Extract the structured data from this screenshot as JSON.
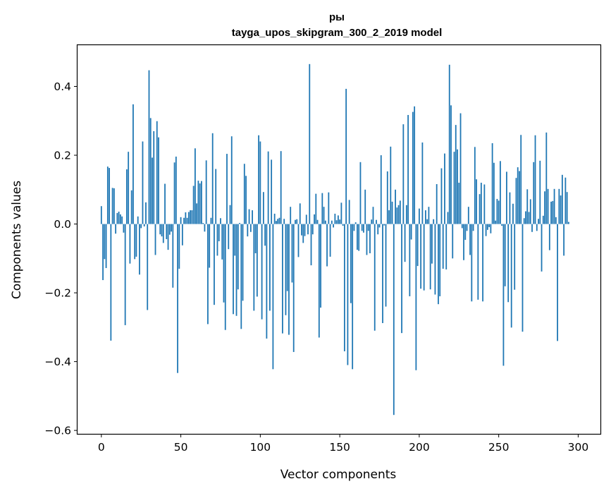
{
  "chart_data": {
    "type": "bar",
    "title": "ры",
    "subtitle": "tayga_upos_skipgram_300_2_2019 model",
    "xlabel": "Vector components",
    "ylabel": "Components values",
    "xlim": [
      -15,
      314
    ],
    "ylim": [
      -0.61,
      0.52
    ],
    "xticks": [
      0,
      50,
      100,
      150,
      200,
      250,
      300
    ],
    "yticks": [
      -0.6,
      -0.4,
      -0.2,
      0.0,
      0.2,
      0.4
    ],
    "ytick_labels": [
      "−0.6",
      "−0.4",
      "−0.2",
      "0.0",
      "0.2",
      "0.4"
    ],
    "grid": false,
    "bar_color": "#1f77b4",
    "values": [
      0.052,
      -0.163,
      -0.102,
      -0.128,
      0.167,
      0.163,
      -0.339,
      0.105,
      0.104,
      -0.028,
      0.032,
      0.036,
      0.028,
      0.022,
      -0.025,
      -0.294,
      0.159,
      0.21,
      -0.115,
      0.098,
      0.348,
      -0.102,
      -0.095,
      0.022,
      -0.147,
      -0.012,
      0.24,
      -0.007,
      0.063,
      -0.25,
      0.447,
      0.308,
      0.193,
      0.27,
      -0.09,
      0.299,
      0.252,
      -0.03,
      -0.036,
      -0.055,
      0.117,
      -0.044,
      -0.075,
      -0.031,
      -0.022,
      -0.185,
      0.179,
      0.196,
      -0.433,
      -0.13,
      0.02,
      -0.062,
      0.018,
      0.034,
      0.018,
      0.035,
      0.04,
      0.04,
      0.111,
      0.22,
      0.06,
      0.126,
      0.118,
      0.125,
      0.003,
      -0.022,
      0.185,
      -0.291,
      -0.127,
      0.018,
      0.264,
      -0.235,
      0.16,
      -0.092,
      -0.05,
      0.017,
      -0.103,
      -0.228,
      -0.308,
      0.204,
      -0.073,
      0.055,
      0.255,
      -0.262,
      -0.092,
      -0.267,
      -0.19,
      0.003,
      -0.305,
      -0.223,
      0.175,
      0.14,
      -0.036,
      0.043,
      -0.023,
      0.04,
      -0.252,
      -0.085,
      -0.211,
      0.258,
      0.24,
      -0.277,
      0.093,
      -0.063,
      -0.333,
      0.211,
      -0.252,
      0.187,
      -0.422,
      0.03,
      0.009,
      0.015,
      0.018,
      0.212,
      -0.318,
      0.015,
      -0.265,
      -0.195,
      -0.322,
      0.05,
      -0.17,
      -0.372,
      0.012,
      0.014,
      -0.096,
      0.06,
      -0.033,
      -0.055,
      -0.035,
      0.027,
      -0.03,
      0.465,
      -0.12,
      -0.03,
      0.028,
      0.088,
      0.012,
      -0.33,
      -0.243,
      0.09,
      0.05,
      0.01,
      -0.123,
      0.092,
      -0.095,
      0.01,
      -0.01,
      0.03,
      0.011,
      0.025,
      0.013,
      0.062,
      -0.005,
      -0.37,
      0.393,
      -0.41,
      0.07,
      -0.23,
      -0.422,
      -0.02,
      0.005,
      -0.075,
      -0.078,
      0.18,
      -0.02,
      -0.025,
      0.1,
      -0.09,
      -0.02,
      -0.085,
      0.013,
      0.05,
      -0.31,
      0.012,
      -0.03,
      -0.01,
      0.2,
      -0.288,
      -0.004,
      -0.24,
      0.153,
      0.04,
      0.225,
      0.065,
      -0.555,
      0.1,
      0.048,
      0.055,
      0.068,
      -0.317,
      0.29,
      -0.11,
      0.055,
      0.317,
      -0.21,
      -0.045,
      0.326,
      0.342,
      -0.425,
      -0.122,
      0.045,
      -0.188,
      0.237,
      -0.193,
      0.04,
      0.014,
      0.05,
      -0.19,
      -0.115,
      0.014,
      -0.205,
      0.116,
      -0.233,
      -0.21,
      0.162,
      -0.13,
      0.205,
      -0.132,
      0.035,
      0.463,
      0.345,
      -0.1,
      0.21,
      0.288,
      0.217,
      0.12,
      0.322,
      -0.012,
      -0.105,
      -0.046,
      -0.02,
      0.05,
      -0.09,
      -0.225,
      -0.02,
      0.224,
      0.13,
      -0.22,
      0.087,
      0.12,
      -0.225,
      0.115,
      -0.035,
      -0.017,
      -0.009,
      -0.027,
      0.235,
      0.178,
      0.01,
      0.073,
      0.068,
      0.183,
      -0.005,
      -0.412,
      -0.181,
      0.152,
      -0.227,
      0.092,
      -0.301,
      0.059,
      -0.191,
      0.134,
      0.165,
      0.154,
      0.259,
      -0.313,
      0.017,
      0.037,
      0.101,
      0.035,
      0.072,
      -0.023,
      0.18,
      0.258,
      -0.02,
      0.015,
      0.184,
      -0.138,
      0.024,
      0.095,
      0.266,
      0.102,
      -0.076,
      0.065,
      0.067,
      0.102,
      0.02,
      -0.34,
      0.102,
      0.083,
      0.143,
      -0.092,
      0.135,
      0.093,
      0.006
    ]
  }
}
